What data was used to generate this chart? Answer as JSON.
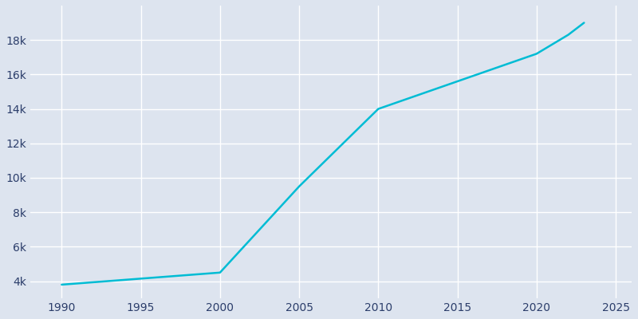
{
  "years": [
    1990,
    2000,
    2005,
    2010,
    2020,
    2022,
    2023
  ],
  "population": [
    3800,
    4500,
    9500,
    14000,
    17200,
    18300,
    19000
  ],
  "line_color": "#00bcd4",
  "bg_color": "#dde4ef",
  "grid_color": "#ffffff",
  "text_color": "#2c3e6b",
  "xlim": [
    1988,
    2026
  ],
  "ylim": [
    3000,
    20000
  ],
  "xticks": [
    1990,
    1995,
    2000,
    2005,
    2010,
    2015,
    2020,
    2025
  ],
  "yticks": [
    4000,
    6000,
    8000,
    10000,
    12000,
    14000,
    16000,
    18000
  ],
  "ytick_labels": [
    "4k",
    "6k",
    "8k",
    "10k",
    "12k",
    "14k",
    "16k",
    "18k"
  ],
  "line_width": 1.8,
  "fig_width": 8.0,
  "fig_height": 4.0
}
